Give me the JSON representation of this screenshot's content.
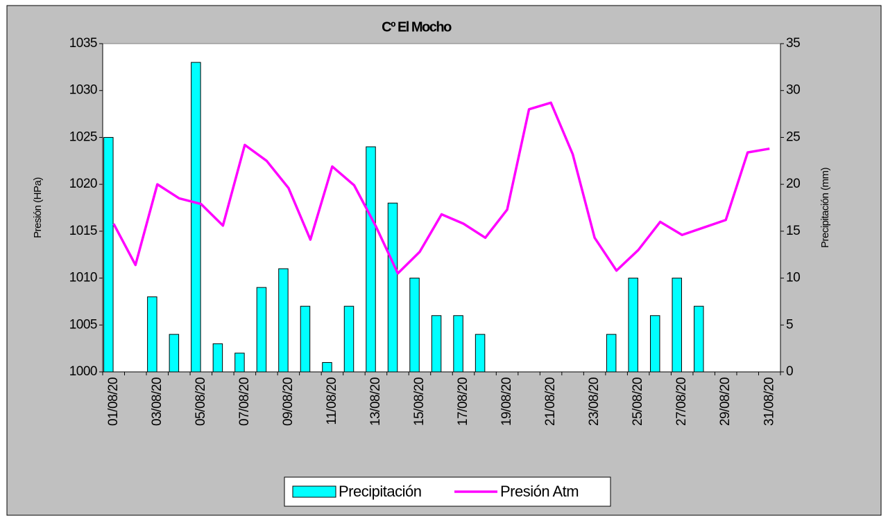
{
  "chart_data": {
    "type": "bar",
    "title": "Cº El Mocho",
    "y_label": "Presión (HPa)",
    "y2_label": "Precipitación (mm)",
    "categories": [
      "01/08/20",
      null,
      "03/08/20",
      null,
      "05/08/20",
      null,
      "07/08/20",
      null,
      "09/08/20",
      null,
      "11/08/20",
      null,
      "13/08/20",
      null,
      "15/08/20",
      null,
      "17/08/20",
      null,
      "19/08/20",
      null,
      "21/08/20",
      null,
      "23/08/20",
      null,
      "25/08/20",
      null,
      "27/08/20",
      null,
      "29/08/20",
      null,
      "31/08/20"
    ],
    "series": [
      {
        "name": "Precipitación",
        "type": "bar",
        "axis": "y2",
        "color": "#00ffff",
        "values": [
          25,
          0,
          8,
          4,
          33,
          3,
          2,
          9,
          11,
          7,
          1,
          7,
          24,
          18,
          10,
          6,
          6,
          4,
          0,
          0,
          0,
          0,
          0,
          4,
          10,
          6,
          10,
          7,
          0,
          0,
          0
        ]
      },
      {
        "name": "Presión Atm",
        "type": "line",
        "color": "#ff00ff",
        "values": [
          1015.8,
          1011.4,
          1020,
          1018.5,
          1017.9,
          1015.6,
          1024.2,
          1022.5,
          1019.6,
          1014.1,
          1021.9,
          1019.9,
          1015.5,
          1010.5,
          1012.8,
          1016.8,
          1015.8,
          1014.3,
          1017.3,
          1028,
          1028.7,
          1023.2,
          1014.3,
          1010.8,
          1013,
          1016,
          1014.6,
          1015.4,
          1016.2,
          1023.4,
          1023.8
        ]
      }
    ],
    "ylim": [
      1000,
      1035
    ],
    "yticks": [
      1000,
      1005,
      1010,
      1015,
      1020,
      1025,
      1030,
      1035
    ],
    "y2lim": [
      0,
      35
    ],
    "y2ticks": [
      0,
      5,
      10,
      15,
      20,
      25,
      30,
      35
    ],
    "legend": "bottom"
  }
}
